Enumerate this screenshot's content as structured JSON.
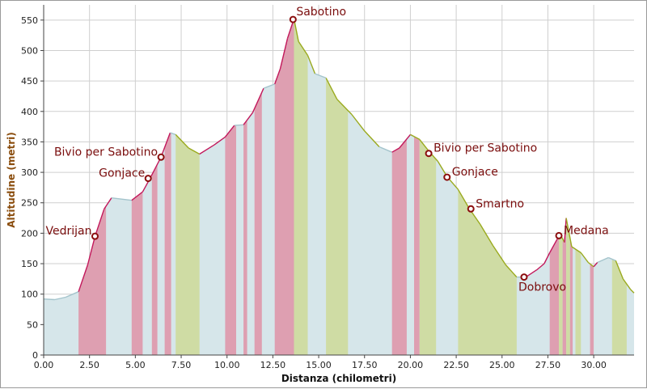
{
  "chart_data": {
    "type": "area",
    "xlabel": "Distanza (chilometri)",
    "ylabel": "Altitudine (metri)",
    "xlim": [
      0,
      32.2
    ],
    "ylim": [
      0,
      575
    ],
    "x_ticks": [
      "0.00",
      "2.50",
      "5.00",
      "7.50",
      "10.00",
      "12.50",
      "15.00",
      "17.50",
      "20.00",
      "22.50",
      "25.00",
      "27.50",
      "30.00"
    ],
    "y_ticks": [
      "0",
      "50",
      "100",
      "150",
      "200",
      "250",
      "300",
      "350",
      "400",
      "450",
      "500",
      "550"
    ],
    "grid": true,
    "colors": {
      "fill": "#d6e6ea",
      "uphill_band": "#de9fb1",
      "downhill_band": "#cfdca4",
      "uphill_line": "#c2185b",
      "downhill_line": "#9aaa1e",
      "flat_line": "#a4c4cc",
      "grid": "#cfcfcf",
      "marker": "#8b0d0d",
      "axis_text": "#8a4c0c"
    },
    "profile": [
      {
        "x": 0.0,
        "y": 92
      },
      {
        "x": 0.6,
        "y": 91
      },
      {
        "x": 1.2,
        "y": 95
      },
      {
        "x": 1.9,
        "y": 104
      },
      {
        "x": 2.4,
        "y": 148
      },
      {
        "x": 2.8,
        "y": 195
      },
      {
        "x": 3.3,
        "y": 240
      },
      {
        "x": 3.7,
        "y": 258
      },
      {
        "x": 4.8,
        "y": 254
      },
      {
        "x": 5.4,
        "y": 268
      },
      {
        "x": 5.8,
        "y": 290
      },
      {
        "x": 6.4,
        "y": 325
      },
      {
        "x": 6.9,
        "y": 365
      },
      {
        "x": 7.2,
        "y": 362
      },
      {
        "x": 7.9,
        "y": 340
      },
      {
        "x": 8.5,
        "y": 330
      },
      {
        "x": 9.3,
        "y": 345
      },
      {
        "x": 9.9,
        "y": 358
      },
      {
        "x": 10.4,
        "y": 377
      },
      {
        "x": 10.9,
        "y": 378
      },
      {
        "x": 11.4,
        "y": 398
      },
      {
        "x": 12.0,
        "y": 438
      },
      {
        "x": 12.6,
        "y": 445
      },
      {
        "x": 12.9,
        "y": 470
      },
      {
        "x": 13.3,
        "y": 520
      },
      {
        "x": 13.65,
        "y": 552
      },
      {
        "x": 13.9,
        "y": 515
      },
      {
        "x": 14.4,
        "y": 492
      },
      {
        "x": 14.8,
        "y": 462
      },
      {
        "x": 15.4,
        "y": 455
      },
      {
        "x": 16.0,
        "y": 420
      },
      {
        "x": 16.8,
        "y": 395
      },
      {
        "x": 17.5,
        "y": 368
      },
      {
        "x": 18.3,
        "y": 342
      },
      {
        "x": 19.0,
        "y": 333
      },
      {
        "x": 19.4,
        "y": 340
      },
      {
        "x": 20.0,
        "y": 362
      },
      {
        "x": 20.5,
        "y": 354
      },
      {
        "x": 21.0,
        "y": 335
      },
      {
        "x": 21.5,
        "y": 318
      },
      {
        "x": 22.0,
        "y": 293
      },
      {
        "x": 22.6,
        "y": 272
      },
      {
        "x": 23.2,
        "y": 241
      },
      {
        "x": 23.8,
        "y": 215
      },
      {
        "x": 24.5,
        "y": 180
      },
      {
        "x": 25.2,
        "y": 148
      },
      {
        "x": 25.8,
        "y": 128
      },
      {
        "x": 26.3,
        "y": 128
      },
      {
        "x": 26.9,
        "y": 140
      },
      {
        "x": 27.3,
        "y": 150
      },
      {
        "x": 27.6,
        "y": 168
      },
      {
        "x": 28.0,
        "y": 190
      },
      {
        "x": 28.2,
        "y": 197
      },
      {
        "x": 28.4,
        "y": 185
      },
      {
        "x": 28.5,
        "y": 225
      },
      {
        "x": 28.8,
        "y": 178
      },
      {
        "x": 29.3,
        "y": 168
      },
      {
        "x": 29.7,
        "y": 152
      },
      {
        "x": 30.0,
        "y": 145
      },
      {
        "x": 30.2,
        "y": 152
      },
      {
        "x": 30.8,
        "y": 160
      },
      {
        "x": 31.2,
        "y": 155
      },
      {
        "x": 31.6,
        "y": 125
      },
      {
        "x": 32.0,
        "y": 108
      },
      {
        "x": 32.2,
        "y": 102
      }
    ],
    "uphill_bands": [
      [
        1.9,
        3.4
      ],
      [
        4.8,
        5.4
      ],
      [
        5.9,
        6.2
      ],
      [
        6.6,
        6.95
      ],
      [
        9.9,
        10.5
      ],
      [
        10.9,
        11.1
      ],
      [
        11.5,
        11.9
      ],
      [
        12.6,
        13.65
      ],
      [
        19.0,
        19.8
      ],
      [
        20.2,
        20.5
      ],
      [
        27.6,
        28.1
      ],
      [
        28.3,
        28.5
      ],
      [
        28.7,
        28.85
      ],
      [
        29.8,
        30.0
      ]
    ],
    "downhill_bands": [
      [
        7.2,
        8.5
      ],
      [
        13.65,
        14.4
      ],
      [
        15.4,
        16.6
      ],
      [
        20.5,
        21.4
      ],
      [
        22.6,
        25.8
      ],
      [
        28.1,
        28.3
      ],
      [
        28.5,
        28.7
      ],
      [
        29.0,
        29.3
      ],
      [
        31.0,
        31.8
      ]
    ],
    "waypoints": [
      {
        "name": "Vedrijan",
        "x": 2.8,
        "y": 195,
        "label_side": "left"
      },
      {
        "name": "Gonjace",
        "x": 5.7,
        "y": 290,
        "label_side": "left"
      },
      {
        "name": "Bivio per Sabotino",
        "x": 6.4,
        "y": 325,
        "label_side": "left"
      },
      {
        "name": "Sabotino",
        "x": 13.6,
        "y": 551,
        "label_side": "right-up"
      },
      {
        "name": "Bivio per Sabotino",
        "x": 21.0,
        "y": 331,
        "label_side": "right"
      },
      {
        "name": "Gonjace",
        "x": 22.0,
        "y": 292,
        "label_side": "right"
      },
      {
        "name": "Smartno",
        "x": 23.3,
        "y": 240,
        "label_side": "right"
      },
      {
        "name": "Dobrovo",
        "x": 26.2,
        "y": 128,
        "label_side": "below"
      },
      {
        "name": "Medana",
        "x": 28.1,
        "y": 196,
        "label_side": "right"
      }
    ]
  }
}
